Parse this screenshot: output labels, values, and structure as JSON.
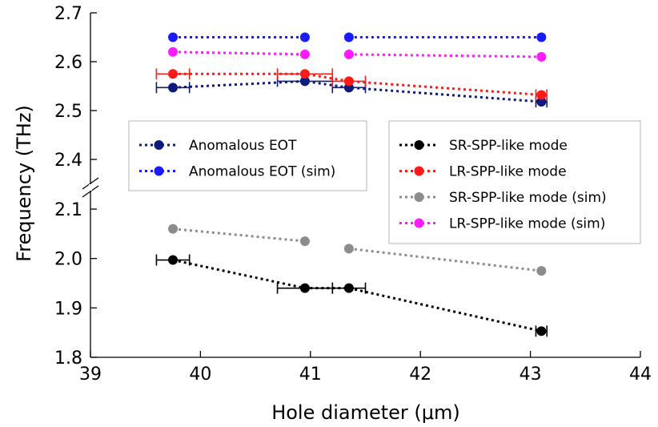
{
  "chart_data": {
    "type": "scatter",
    "title": "",
    "xlabel": "Hole diameter (μm)",
    "ylabel": "Frequency (THz)",
    "xlim": [
      39,
      44
    ],
    "ylim": [
      1.8,
      2.7
    ],
    "y_axis_break": [
      2.15,
      2.35
    ],
    "x_ticks": [
      "39",
      "40",
      "41",
      "42",
      "43",
      "44"
    ],
    "y_ticks": [
      "1.8",
      "1.9",
      "2.0",
      "2.1",
      "2.4",
      "2.5",
      "2.6",
      "2.7"
    ],
    "grid": false,
    "series": [
      {
        "name": "Anomalous EOT",
        "color": "#0d1b7a",
        "style": "dotted-line-circles",
        "x": [
          39.75,
          40.95,
          41.35,
          43.1
        ],
        "y": [
          2.547,
          2.56,
          2.547,
          2.518
        ],
        "x_err": [
          0.15,
          0.25,
          0.15,
          0.05
        ]
      },
      {
        "name": "Anomalous EOT (sim)",
        "color": "#1a1aff",
        "style": "dotted-line-circles",
        "x": [
          39.75,
          40.95,
          41.35,
          43.1
        ],
        "y": [
          2.65,
          2.65,
          2.65,
          2.65
        ],
        "segments": [
          [
            0,
            1
          ],
          [
            2,
            3
          ]
        ]
      },
      {
        "name": "SR-SPP-like mode",
        "color": "#000000",
        "style": "dotted-line-circles",
        "x": [
          39.75,
          40.95,
          41.35,
          43.1
        ],
        "y": [
          1.997,
          1.94,
          1.94,
          1.853
        ],
        "x_err": [
          0.15,
          0.25,
          0.15,
          0.05
        ]
      },
      {
        "name": "LR-SPP-like mode",
        "color": "#ff1a1a",
        "style": "dotted-line-circles",
        "x": [
          39.75,
          40.95,
          41.35,
          43.1
        ],
        "y": [
          2.575,
          2.575,
          2.56,
          2.532
        ],
        "x_err": [
          0.15,
          0.25,
          0.15,
          0.05
        ]
      },
      {
        "name": "SR-SPP-like mode (sim)",
        "color": "#8c8c8c",
        "style": "dotted-line-circles",
        "x": [
          39.75,
          40.95,
          41.35,
          43.1
        ],
        "y": [
          2.06,
          2.035,
          2.02,
          1.975
        ],
        "segments": [
          [
            0,
            1
          ],
          [
            2,
            3
          ]
        ]
      },
      {
        "name": "LR-SPP-like mode (sim)",
        "color": "#ff1aff",
        "style": "dotted-line-circles",
        "x": [
          39.75,
          40.95,
          41.35,
          43.1
        ],
        "y": [
          2.62,
          2.615,
          2.615,
          2.61
        ],
        "segments": [
          [
            0,
            1
          ],
          [
            2,
            3
          ]
        ]
      }
    ],
    "legends": [
      {
        "placement": "middle-left",
        "entries": [
          "Anomalous EOT",
          "Anomalous EOT (sim)"
        ]
      },
      {
        "placement": "middle-right",
        "entries": [
          "SR-SPP-like mode",
          "LR-SPP-like mode",
          "SR-SPP-like mode (sim)",
          "LR-SPP-like mode (sim)"
        ]
      }
    ]
  }
}
